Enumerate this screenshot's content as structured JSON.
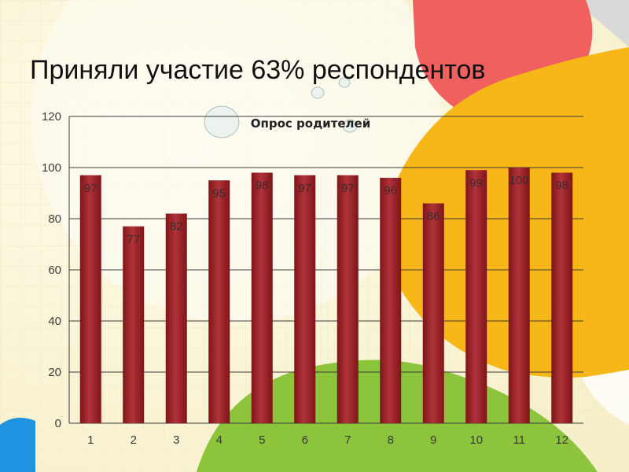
{
  "slide": {
    "title": "Приняли участие 63% респондентов"
  },
  "colors": {
    "bar": "#a3282b",
    "bar_dark": "#7e1518",
    "bar_light": "#c04447",
    "grid": "#3a3a3a",
    "bg_cream": "#fbf6dc",
    "circle_red": "#f0605e",
    "circle_orange": "#f8b718",
    "circle_green": "#8cc43c",
    "circle_blue": "#1f93df"
  },
  "chart_data": {
    "type": "bar",
    "title": "Опрос родителей",
    "categories": [
      "1",
      "2",
      "3",
      "4",
      "5",
      "6",
      "7",
      "8",
      "9",
      "10",
      "11",
      "12"
    ],
    "values": [
      97,
      77,
      82,
      95,
      98,
      97,
      97,
      96,
      86,
      99,
      100,
      98
    ],
    "xlabel": "",
    "ylabel": "",
    "ylim": [
      0,
      120
    ],
    "yticks": [
      0,
      20,
      40,
      60,
      80,
      100,
      120
    ],
    "grid": true,
    "legend": "none",
    "data_labels": true
  }
}
